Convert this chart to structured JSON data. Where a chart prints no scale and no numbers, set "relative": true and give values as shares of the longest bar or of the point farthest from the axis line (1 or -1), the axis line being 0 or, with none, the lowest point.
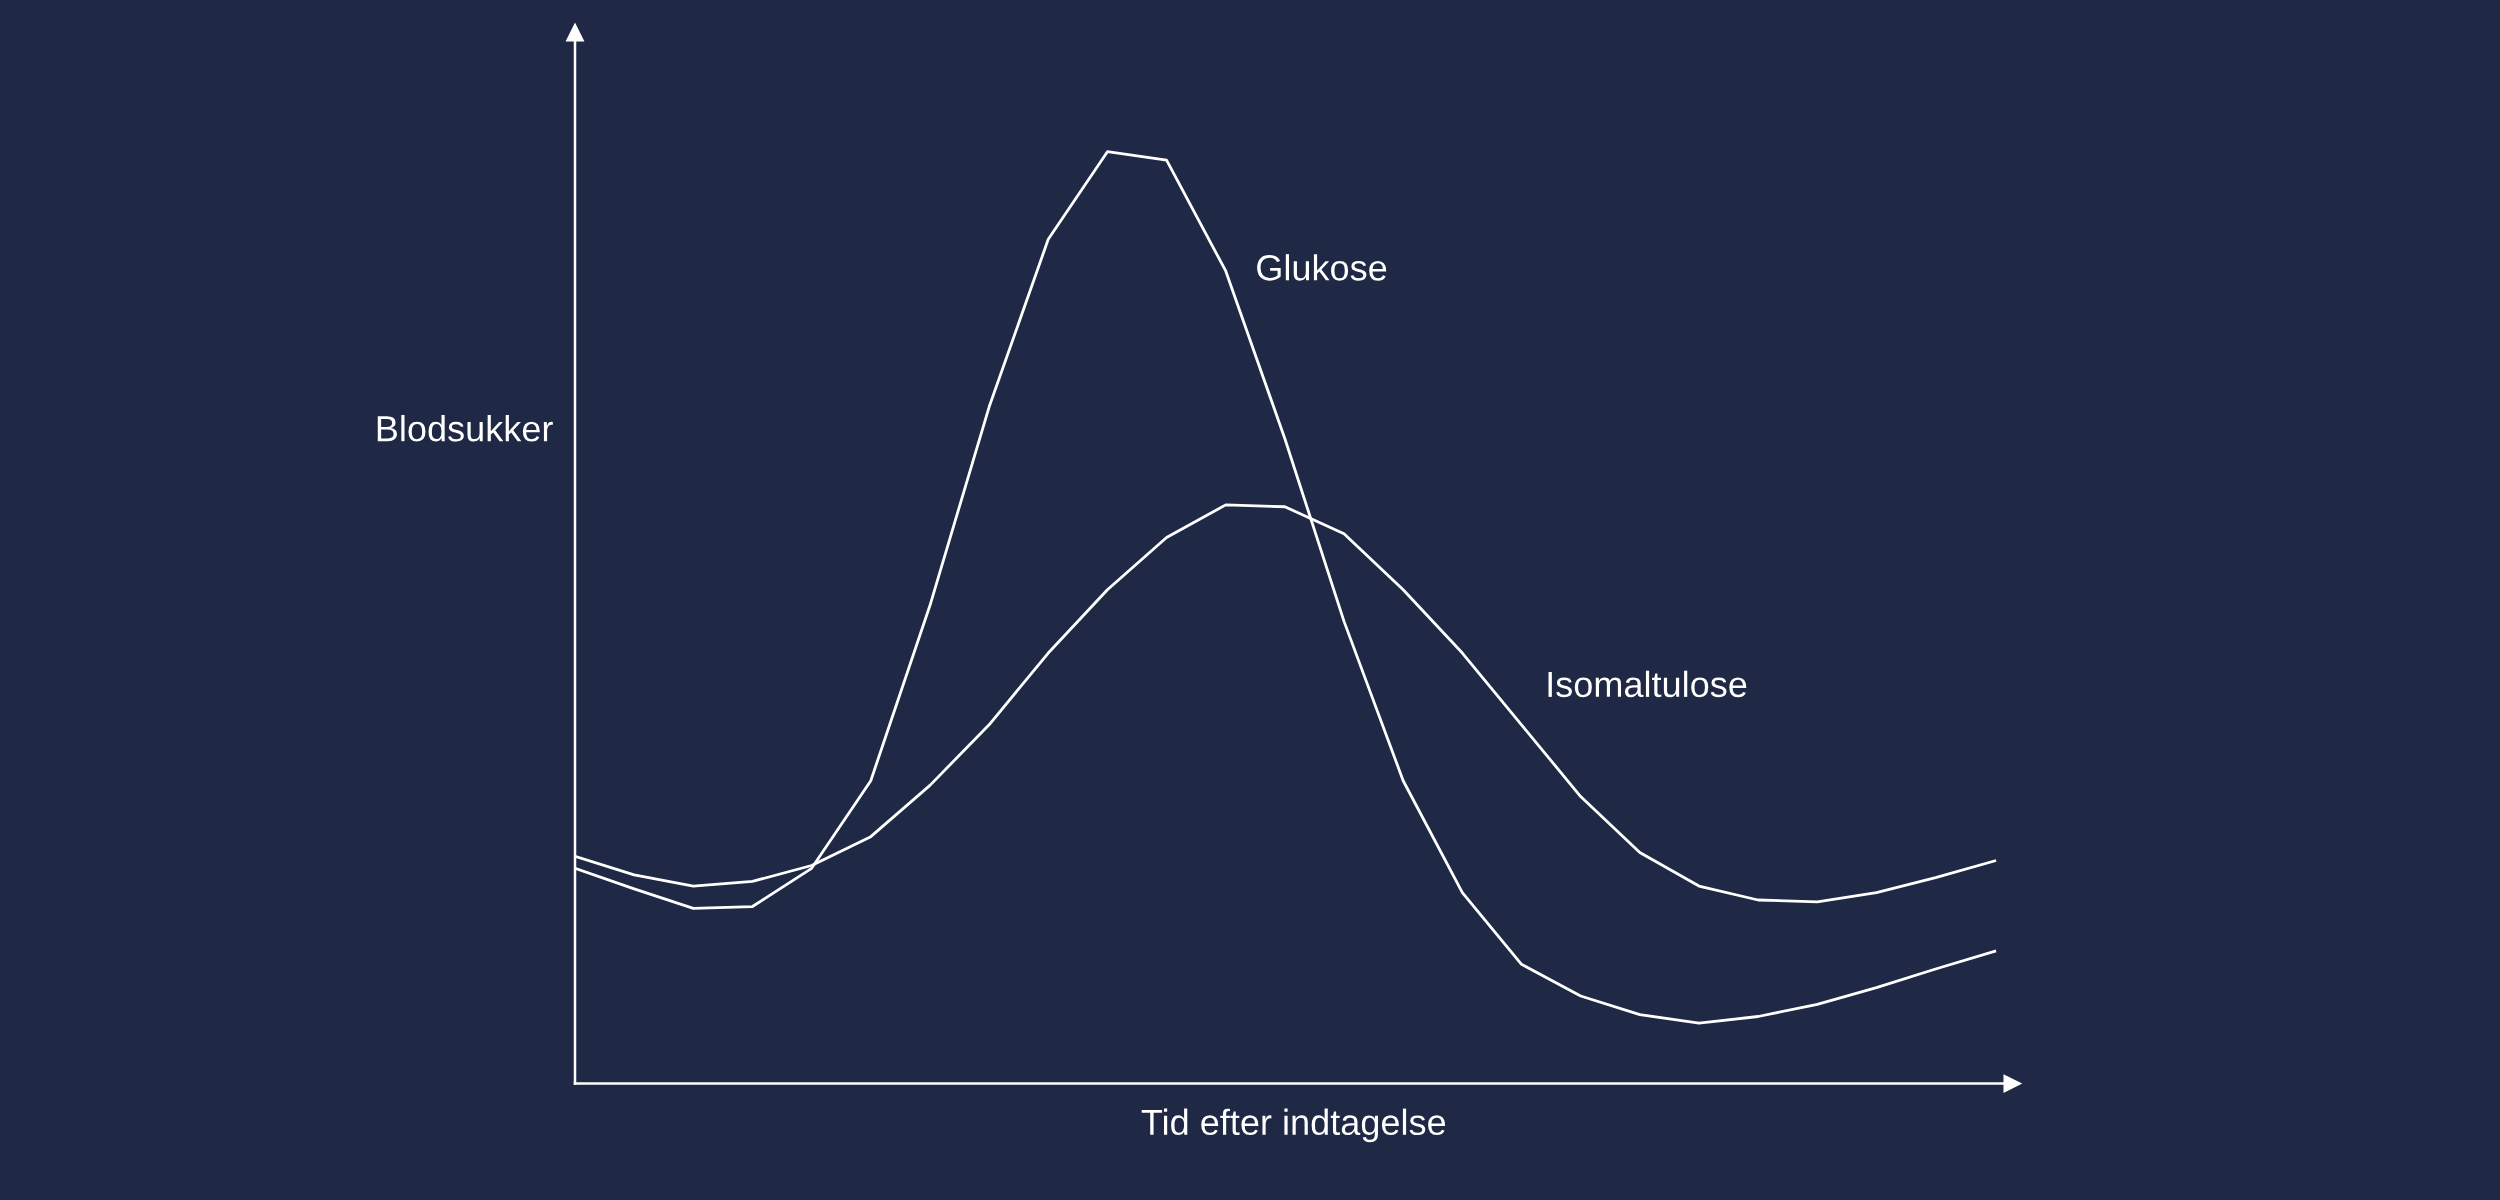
{
  "chart_data": {
    "type": "line",
    "relative": true,
    "xlabel": "Tid efter indtagelse",
    "ylabel": "Blodsukker",
    "categories": [
      null,
      null,
      null,
      null,
      null,
      null,
      null,
      null,
      null,
      null,
      null,
      null,
      null,
      null,
      null,
      null,
      null,
      null,
      null,
      null,
      null,
      null,
      null,
      null,
      null
    ],
    "series": [
      {
        "name": "Glukose",
        "color": "#ffffff",
        "values": [
          0.231,
          0.209,
          0.188,
          0.19,
          0.231,
          0.325,
          0.513,
          0.726,
          0.906,
          1,
          0.991,
          0.872,
          0.692,
          0.496,
          0.325,
          0.205,
          0.128,
          0.094,
          0.074,
          0.065,
          0.072,
          0.085,
          0.103,
          0.123,
          0.142
        ]
      },
      {
        "name": "Isomaltulose",
        "color": "#ffffff",
        "values": [
          0.244,
          0.224,
          0.212,
          0.217,
          0.234,
          0.265,
          0.32,
          0.385,
          0.462,
          0.53,
          0.586,
          0.621,
          0.619,
          0.59,
          0.53,
          0.462,
          0.385,
          0.308,
          0.248,
          0.212,
          0.197,
          0.195,
          0.205,
          0.221,
          0.239
        ]
      }
    ],
    "legend": false,
    "marker": "none",
    "line_style": "solid"
  }
}
